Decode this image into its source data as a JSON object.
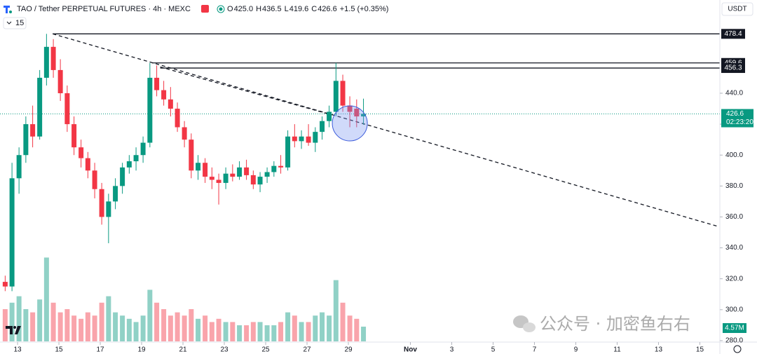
{
  "header": {
    "title": "TAO / Tether PERPETUAL FUTURES · 4h · MEXC",
    "ohlc_labels": [
      "O",
      "H",
      "L",
      "C"
    ],
    "ohlc_values": [
      "425.0",
      "436.5",
      "419.6",
      "426.6"
    ],
    "change": "+1.5 (+0.35%)",
    "indicators": "15",
    "currency": "USDT",
    "watermark": "公众号 · 加密鱼右右"
  },
  "chart_data": {
    "type": "candlestick",
    "x": [
      12.4,
      12.73,
      13.07,
      13.4,
      13.73,
      14.07,
      14.4,
      14.73,
      15.07,
      15.4,
      15.73,
      16.07,
      16.4,
      16.73,
      17.07,
      17.4,
      17.73,
      18.07,
      18.4,
      18.73,
      19.07,
      19.4,
      19.73,
      20.07,
      20.4,
      20.73,
      21.07,
      21.4,
      21.73,
      22.07,
      22.4,
      22.73,
      23.07,
      23.4,
      23.73,
      24.07,
      24.4,
      24.73,
      25.07,
      25.4,
      25.73,
      26.07,
      26.4,
      26.73,
      27.07,
      27.4,
      27.73,
      28.07,
      28.4,
      28.73,
      29.07,
      29.4,
      29.73
    ],
    "open": [
      318,
      315,
      385,
      400,
      420,
      412,
      450,
      470,
      455,
      440,
      420,
      405,
      398,
      390,
      378,
      360,
      370,
      380,
      392,
      396,
      400,
      408,
      450,
      442,
      436,
      430,
      418,
      410,
      390,
      395,
      386,
      384,
      382,
      388,
      386,
      392,
      387,
      381,
      386,
      389,
      393,
      392,
      412,
      409,
      412,
      408,
      415,
      422,
      428,
      448,
      432,
      430,
      425.0
    ],
    "high": [
      322,
      395,
      405,
      425,
      432,
      455,
      478.4,
      475,
      462,
      445,
      425,
      410,
      402,
      395,
      382,
      375,
      385,
      395,
      400,
      405,
      412,
      459.6,
      458,
      448,
      444,
      434,
      422,
      414,
      400,
      398,
      392,
      388,
      392,
      394,
      396,
      397,
      390,
      389,
      392,
      396,
      400,
      416,
      420,
      416,
      420,
      418,
      425,
      432,
      459.6,
      452,
      438,
      436,
      436.5
    ],
    "low": [
      312,
      312,
      375,
      395,
      405,
      410,
      445,
      450,
      435,
      415,
      400,
      392,
      385,
      372,
      355,
      343,
      365,
      375,
      388,
      390,
      395,
      405,
      438,
      432,
      425,
      415,
      405,
      385,
      384,
      382,
      378,
      368,
      378,
      383,
      384,
      384,
      378,
      376,
      382,
      386,
      388,
      390,
      405,
      404,
      406,
      402,
      410,
      418,
      425,
      428,
      418,
      418,
      419.6
    ],
    "close": [
      315,
      385,
      400,
      420,
      412,
      450,
      470,
      455,
      440,
      420,
      405,
      398,
      390,
      378,
      360,
      370,
      380,
      392,
      396,
      400,
      408,
      450,
      442,
      436,
      430,
      418,
      410,
      390,
      395,
      386,
      384,
      382,
      388,
      386,
      392,
      387,
      381,
      386,
      389,
      393,
      392,
      412,
      409,
      412,
      408,
      415,
      422,
      428,
      448,
      432,
      428,
      425,
      426.6
    ],
    "volume": [
      10,
      12,
      14,
      10,
      9,
      13,
      26,
      12,
      9,
      10,
      8,
      7,
      9,
      8,
      12,
      14,
      9,
      8,
      7,
      6,
      8,
      16,
      12,
      10,
      8,
      9,
      8,
      10,
      7,
      8,
      6,
      7,
      6,
      6,
      5,
      5,
      6,
      6,
      5,
      5,
      6,
      9,
      8,
      6,
      6,
      8,
      9,
      8,
      19,
      12,
      8,
      7,
      4.57
    ],
    "volume_value_labels": {
      "52": "4.57M"
    },
    "up_color": "#089981",
    "down_color": "#f23645",
    "xlim": [
      12.15,
      46.9
    ],
    "ylim": [
      279.5,
      500.3
    ],
    "xticks": [
      13,
      15,
      17,
      19,
      21,
      23,
      25,
      27,
      29,
      {
        "value": 32,
        "label": "Nov"
      },
      {
        "value": 34,
        "label": "3"
      },
      {
        "value": 36,
        "label": "5"
      },
      {
        "value": 38,
        "label": "7"
      },
      {
        "value": 40,
        "label": "9"
      },
      {
        "value": 42,
        "label": "11"
      },
      {
        "value": 44,
        "label": "13"
      },
      {
        "value": 46,
        "label": "15"
      }
    ],
    "yticks": [
      {
        "value": 280,
        "label": "280.0"
      },
      {
        "value": 300,
        "label": "300.0"
      },
      {
        "value": 320,
        "label": "320.0"
      },
      {
        "value": 340,
        "label": "340.0"
      },
      {
        "value": 360,
        "label": "360.0"
      },
      {
        "value": 380,
        "label": "380.0"
      },
      {
        "value": 400,
        "label": "400.0"
      },
      {
        "value": 420,
        "label": "420.0"
      },
      {
        "value": 440,
        "label": "440.0"
      }
    ],
    "horizontal_lines": [
      478.4,
      459.6,
      456.3
    ],
    "horizontal_lines_start": [
      14.7,
      19.5,
      19.9
    ],
    "last_price": {
      "value": 426.6,
      "label": "426.6",
      "countdown": "02:23:20"
    },
    "trend_lines": [
      {
        "x": [
          14.7,
          46.9
        ],
        "y": [
          478.4,
          353.8
        ]
      },
      {
        "x": [
          19.9,
          28.2
        ],
        "y": [
          457,
          426
        ]
      }
    ],
    "highlight": {
      "x": 29.07,
      "y": 420.5
    }
  }
}
